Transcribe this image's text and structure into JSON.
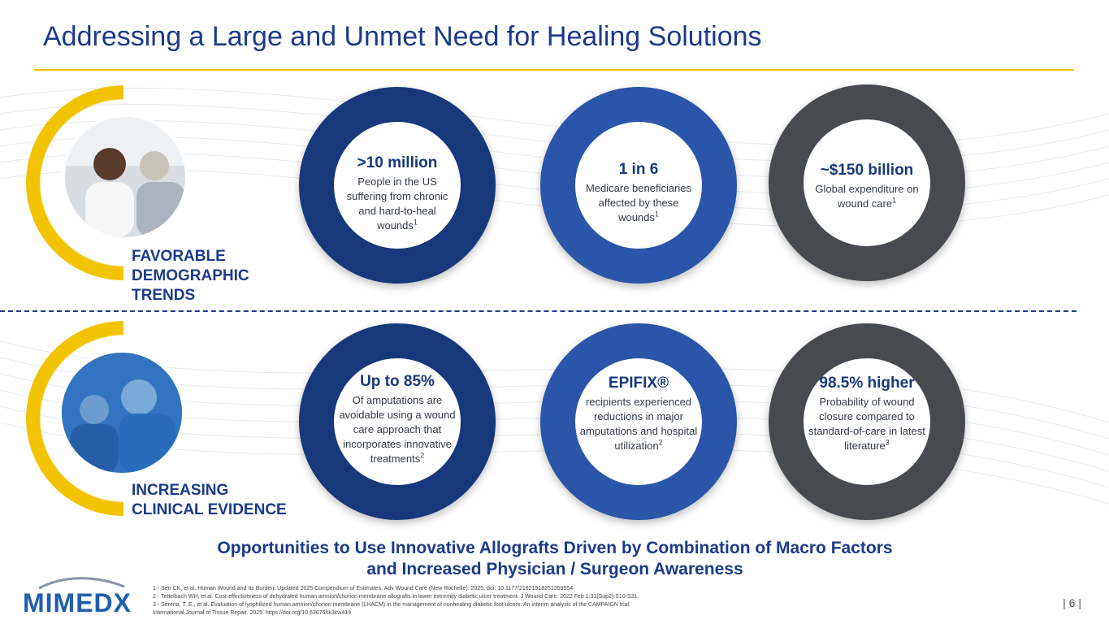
{
  "slide": {
    "title": "Addressing a Large and Unmet Need for Healing Solutions",
    "page_number": "| 6 |"
  },
  "colors": {
    "title_blue": "#1b3a8a",
    "accent_yellow": "#f2c300",
    "ring_dark_blue": "#17397c",
    "ring_mid_blue": "#2a55a8",
    "ring_gray": "#474a4e"
  },
  "sections": [
    {
      "label_line1": "FAVORABLE",
      "label_line2": "DEMOGRAPHIC",
      "label_line3": "TRENDS",
      "photo": "doctor-patient-photo"
    },
    {
      "label_line1": "INCREASING",
      "label_line2": "CLINICAL EVIDENCE",
      "photo": "surgeons-photo"
    }
  ],
  "stats_top": [
    {
      "headline": ">10 million",
      "body": "People in the US suffering from chronic and hard-to-heal wounds",
      "sup": "1",
      "color": "dark-blue"
    },
    {
      "headline": "1 in 6",
      "body": "Medicare beneficiaries affected by these wounds",
      "sup": "1",
      "color": "mid-blue"
    },
    {
      "headline": "~$150 billion",
      "body": "Global expenditure on wound care",
      "sup": "1",
      "color": "gray"
    }
  ],
  "stats_bottom": [
    {
      "headline": "Up to 85%",
      "body": "Of amputations are avoidable using a wound care approach that incorporates innovative treatments",
      "sup": "2",
      "color": "dark-blue"
    },
    {
      "headline": "EPIFIX®",
      "body": "recipients experienced reductions in major amputations and hospital utilization",
      "sup": "2",
      "color": "mid-blue"
    },
    {
      "headline": "98.5% higher",
      "body": "Probability of wound closure compared to standard-of-care in latest literature",
      "sup": "3",
      "color": "gray"
    }
  ],
  "tagline": {
    "line1": "Opportunities to Use Innovative Allografts Driven by Combination of Macro Factors",
    "line2": "and Increased Physician / Surgeon Awareness"
  },
  "footnotes": [
    "1 - Sen CK, et al. Human Wound and Its Burden: Updated 2025 Compendium of Estimates. Adv Wound Care (New Rochelle). 2025; doi: 10.1177/21621918251359554",
    "2 - Tettelbach WH, et al. Cost-effectiveness of dehydrated human amnion/chorion membrane allografts in lower extremity diabetic ulcer treatment. J Wound Care. 2022 Feb 1;31(Sup2):S10-S31.",
    "3 - Serena, T. E., et al. Evaluation of lyophilized human amnion/chorion membrane (LHACM) in the management of nonhealing diabetic foot ulcers: An interim analysis of the CAMPAIGN trial.",
    "International Journal of Tissue Repair. 2025. https://doi.org/10.63676/tk3kw419"
  ],
  "logo": {
    "text": "MIMEDX"
  }
}
